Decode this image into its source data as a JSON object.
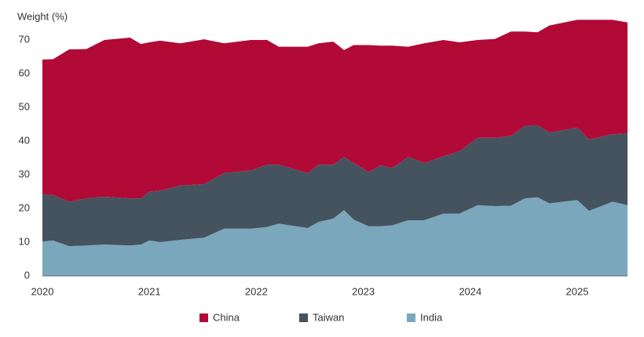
{
  "chart_data": {
    "type": "stacked-area",
    "y_label": "Weight (%)",
    "x": [
      2020.0,
      2020.1,
      2020.25,
      2020.41,
      2020.58,
      2020.82,
      2020.92,
      2021.0,
      2021.1,
      2021.29,
      2021.51,
      2021.7,
      2021.95,
      2022.1,
      2022.21,
      2022.48,
      2022.58,
      2022.72,
      2022.82,
      2022.91,
      2023.05,
      2023.16,
      2023.27,
      2023.42,
      2023.57,
      2023.75,
      2023.9,
      2024.07,
      2024.23,
      2024.38,
      2024.51,
      2024.63,
      2024.74,
      2025.0,
      2025.11,
      2025.33,
      2025.47
    ],
    "series": [
      {
        "name": "China",
        "color": "#b20a37",
        "values": [
          40.0,
          40.3,
          45.2,
          44.3,
          46.5,
          47.7,
          45.8,
          44.3,
          44.5,
          42.2,
          43.0,
          38.5,
          38.7,
          37.0,
          35.0,
          37.5,
          36.0,
          36.5,
          31.7,
          35.0,
          37.7,
          35.5,
          36.3,
          32.7,
          35.5,
          34.5,
          32.3,
          29.0,
          29.3,
          31.0,
          28.0,
          27.6,
          31.8,
          32.0,
          35.5,
          34.0,
          32.9
        ]
      },
      {
        "name": "Taiwan",
        "color": "#45535e",
        "values": [
          14.0,
          13.5,
          13.2,
          14.0,
          14.2,
          14.0,
          13.7,
          14.5,
          15.3,
          16.1,
          15.9,
          16.5,
          17.3,
          18.5,
          17.5,
          16.3,
          17.0,
          16.0,
          15.8,
          16.8,
          16.1,
          18.1,
          17.0,
          18.8,
          17.0,
          17.0,
          18.5,
          20.0,
          20.3,
          20.7,
          21.5,
          21.4,
          21.0,
          21.5,
          21.2,
          20.0,
          21.3
        ]
      },
      {
        "name": "India",
        "color": "#7ba7bc",
        "values": [
          10.2,
          10.5,
          8.8,
          9.0,
          9.3,
          9.0,
          9.3,
          10.5,
          10.0,
          10.7,
          11.3,
          14.0,
          14.0,
          14.5,
          15.5,
          14.2,
          16.0,
          17.0,
          19.5,
          16.7,
          14.7,
          14.7,
          15.0,
          16.5,
          16.5,
          18.5,
          18.5,
          21.0,
          20.7,
          20.8,
          23.0,
          23.3,
          21.5,
          22.5,
          19.3,
          22.0,
          21.0
        ]
      }
    ],
    "xlim": [
      2020,
      2025.47
    ],
    "xticks": [
      2020,
      2021,
      2022,
      2023,
      2024,
      2025
    ],
    "ylim": [
      0,
      80
    ],
    "yticks": [
      0,
      10,
      20,
      30,
      40,
      50,
      60,
      70
    ],
    "grid": false,
    "legend": "bottom"
  }
}
